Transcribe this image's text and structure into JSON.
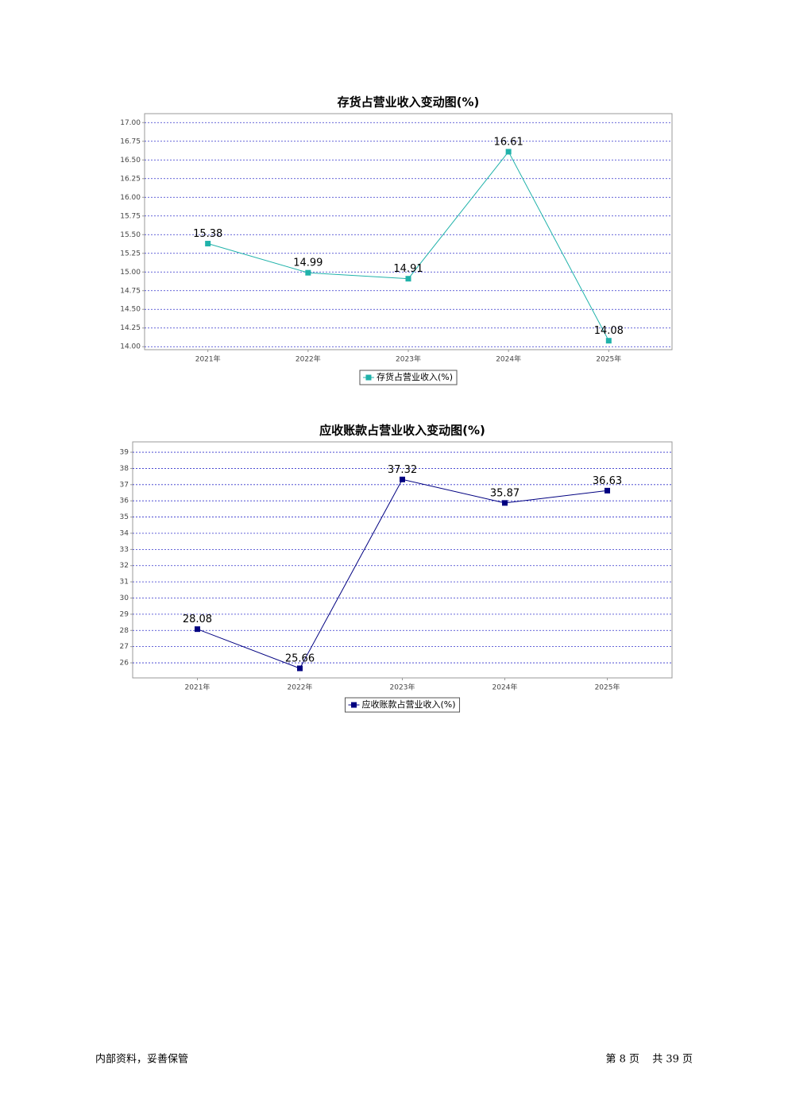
{
  "chart_data": [
    {
      "type": "line",
      "title": "存货占营业收入变动图(%)",
      "categories": [
        "2021年",
        "2022年",
        "2023年",
        "2024年",
        "2025年"
      ],
      "series": [
        {
          "name": "存货占营业收入(%)",
          "color": "#20b2aa",
          "values": [
            15.38,
            14.99,
            14.91,
            16.61,
            14.08
          ]
        }
      ],
      "ylim": [
        13.96,
        17.12
      ],
      "yticks": [
        {
          "value": 14,
          "label": "14.00"
        },
        {
          "value": 14.25,
          "label": "14.25"
        },
        {
          "value": 14.5,
          "label": "14.50"
        },
        {
          "value": 14.75,
          "label": "14.75"
        },
        {
          "value": 15,
          "label": "15.00"
        },
        {
          "value": 15.25,
          "label": "15.25"
        },
        {
          "value": 15.5,
          "label": "15.50"
        },
        {
          "value": 15.75,
          "label": "15.75"
        },
        {
          "value": 16,
          "label": "16.00"
        },
        {
          "value": 16.25,
          "label": "16.25"
        },
        {
          "value": 16.5,
          "label": "16.50"
        },
        {
          "value": 16.75,
          "label": "16.75"
        },
        {
          "value": 17,
          "label": "17.00"
        }
      ],
      "grid": true,
      "legend": "bottom"
    },
    {
      "type": "line",
      "title": "应收账款占营业收入变动图(%)",
      "categories": [
        "2021年",
        "2022年",
        "2023年",
        "2024年",
        "2025年"
      ],
      "series": [
        {
          "name": "应收账款占营业收入(%)",
          "color": "#000080",
          "values": [
            28.08,
            25.66,
            37.32,
            35.87,
            36.63
          ]
        }
      ],
      "ylim": [
        25.07,
        39.64
      ],
      "yticks": [
        26,
        27,
        28,
        29,
        30,
        31,
        32,
        33,
        34,
        35,
        36,
        37,
        38,
        39
      ],
      "grid": true,
      "legend": "bottom"
    }
  ],
  "footer": {
    "left": "内部资料，妥善保管",
    "page": "第 8 页",
    "total": "共 39 页"
  }
}
